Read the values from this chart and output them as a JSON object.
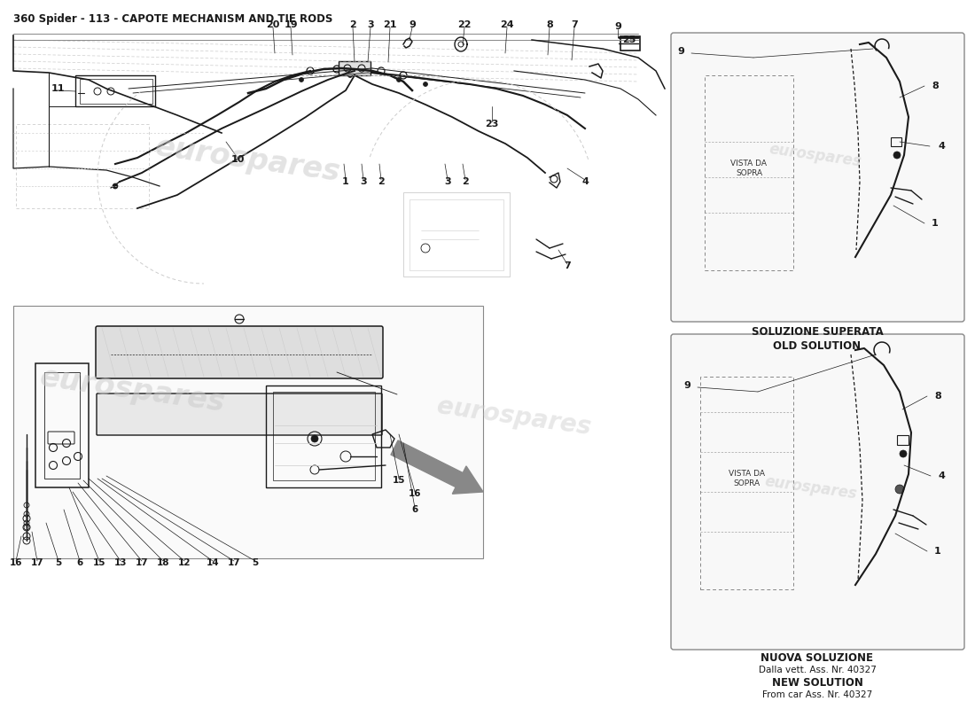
{
  "title": "360 Spider - 113 - CAPOTE MECHANISM AND TIE RODS",
  "title_fontsize": 8.5,
  "bg_color": "#ffffff",
  "line_color": "#1a1a1a",
  "dark_color": "#2a2a2a",
  "gray_color": "#888888",
  "light_gray": "#cccccc",
  "wm_color": "#cccccc",
  "old_solution_label1": "SOLUZIONE SUPERATA",
  "old_solution_label2": "OLD SOLUTION",
  "new_solution_label1": "NUOVA SOLUZIONE",
  "new_solution_label2": "Dalla vett. Ass. Nr. 40327",
  "new_solution_label3": "NEW SOLUTION",
  "new_solution_label4": "From car Ass. Nr. 40327",
  "vista_da_sopra": "VISTA DA\nSOPRA"
}
